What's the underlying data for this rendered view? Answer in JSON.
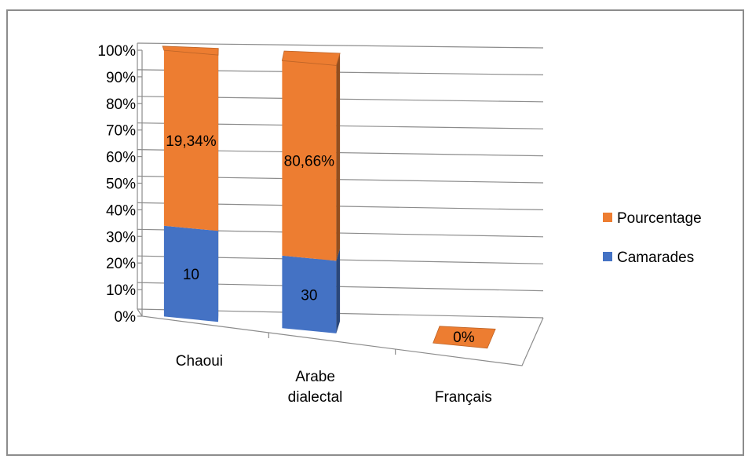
{
  "chart_data": {
    "type": "bar",
    "stacked": "percent",
    "projection": "3d",
    "categories": [
      [
        "Chaoui"
      ],
      [
        "Arabe",
        "dialectal"
      ],
      [
        "Français"
      ]
    ],
    "series": [
      {
        "name": "Camarades",
        "color": "#4472C4",
        "values": [
          10,
          30,
          0
        ],
        "labels": [
          "10",
          "30",
          ""
        ]
      },
      {
        "name": "Pourcentage",
        "color": "#ED7D31",
        "values": [
          19.34,
          80.66,
          0
        ],
        "labels": [
          "19,34%",
          "80,66%",
          "0%"
        ]
      }
    ],
    "y_ticks": [
      "0%",
      "10%",
      "20%",
      "30%",
      "40%",
      "50%",
      "60%",
      "70%",
      "80%",
      "90%",
      "100%"
    ],
    "ylim": [
      0,
      100
    ],
    "grid": true,
    "legend_position": "right",
    "legend": [
      {
        "name": "Pourcentage",
        "color": "#ED7D31"
      },
      {
        "name": "Camarades",
        "color": "#4472C4"
      }
    ]
  }
}
